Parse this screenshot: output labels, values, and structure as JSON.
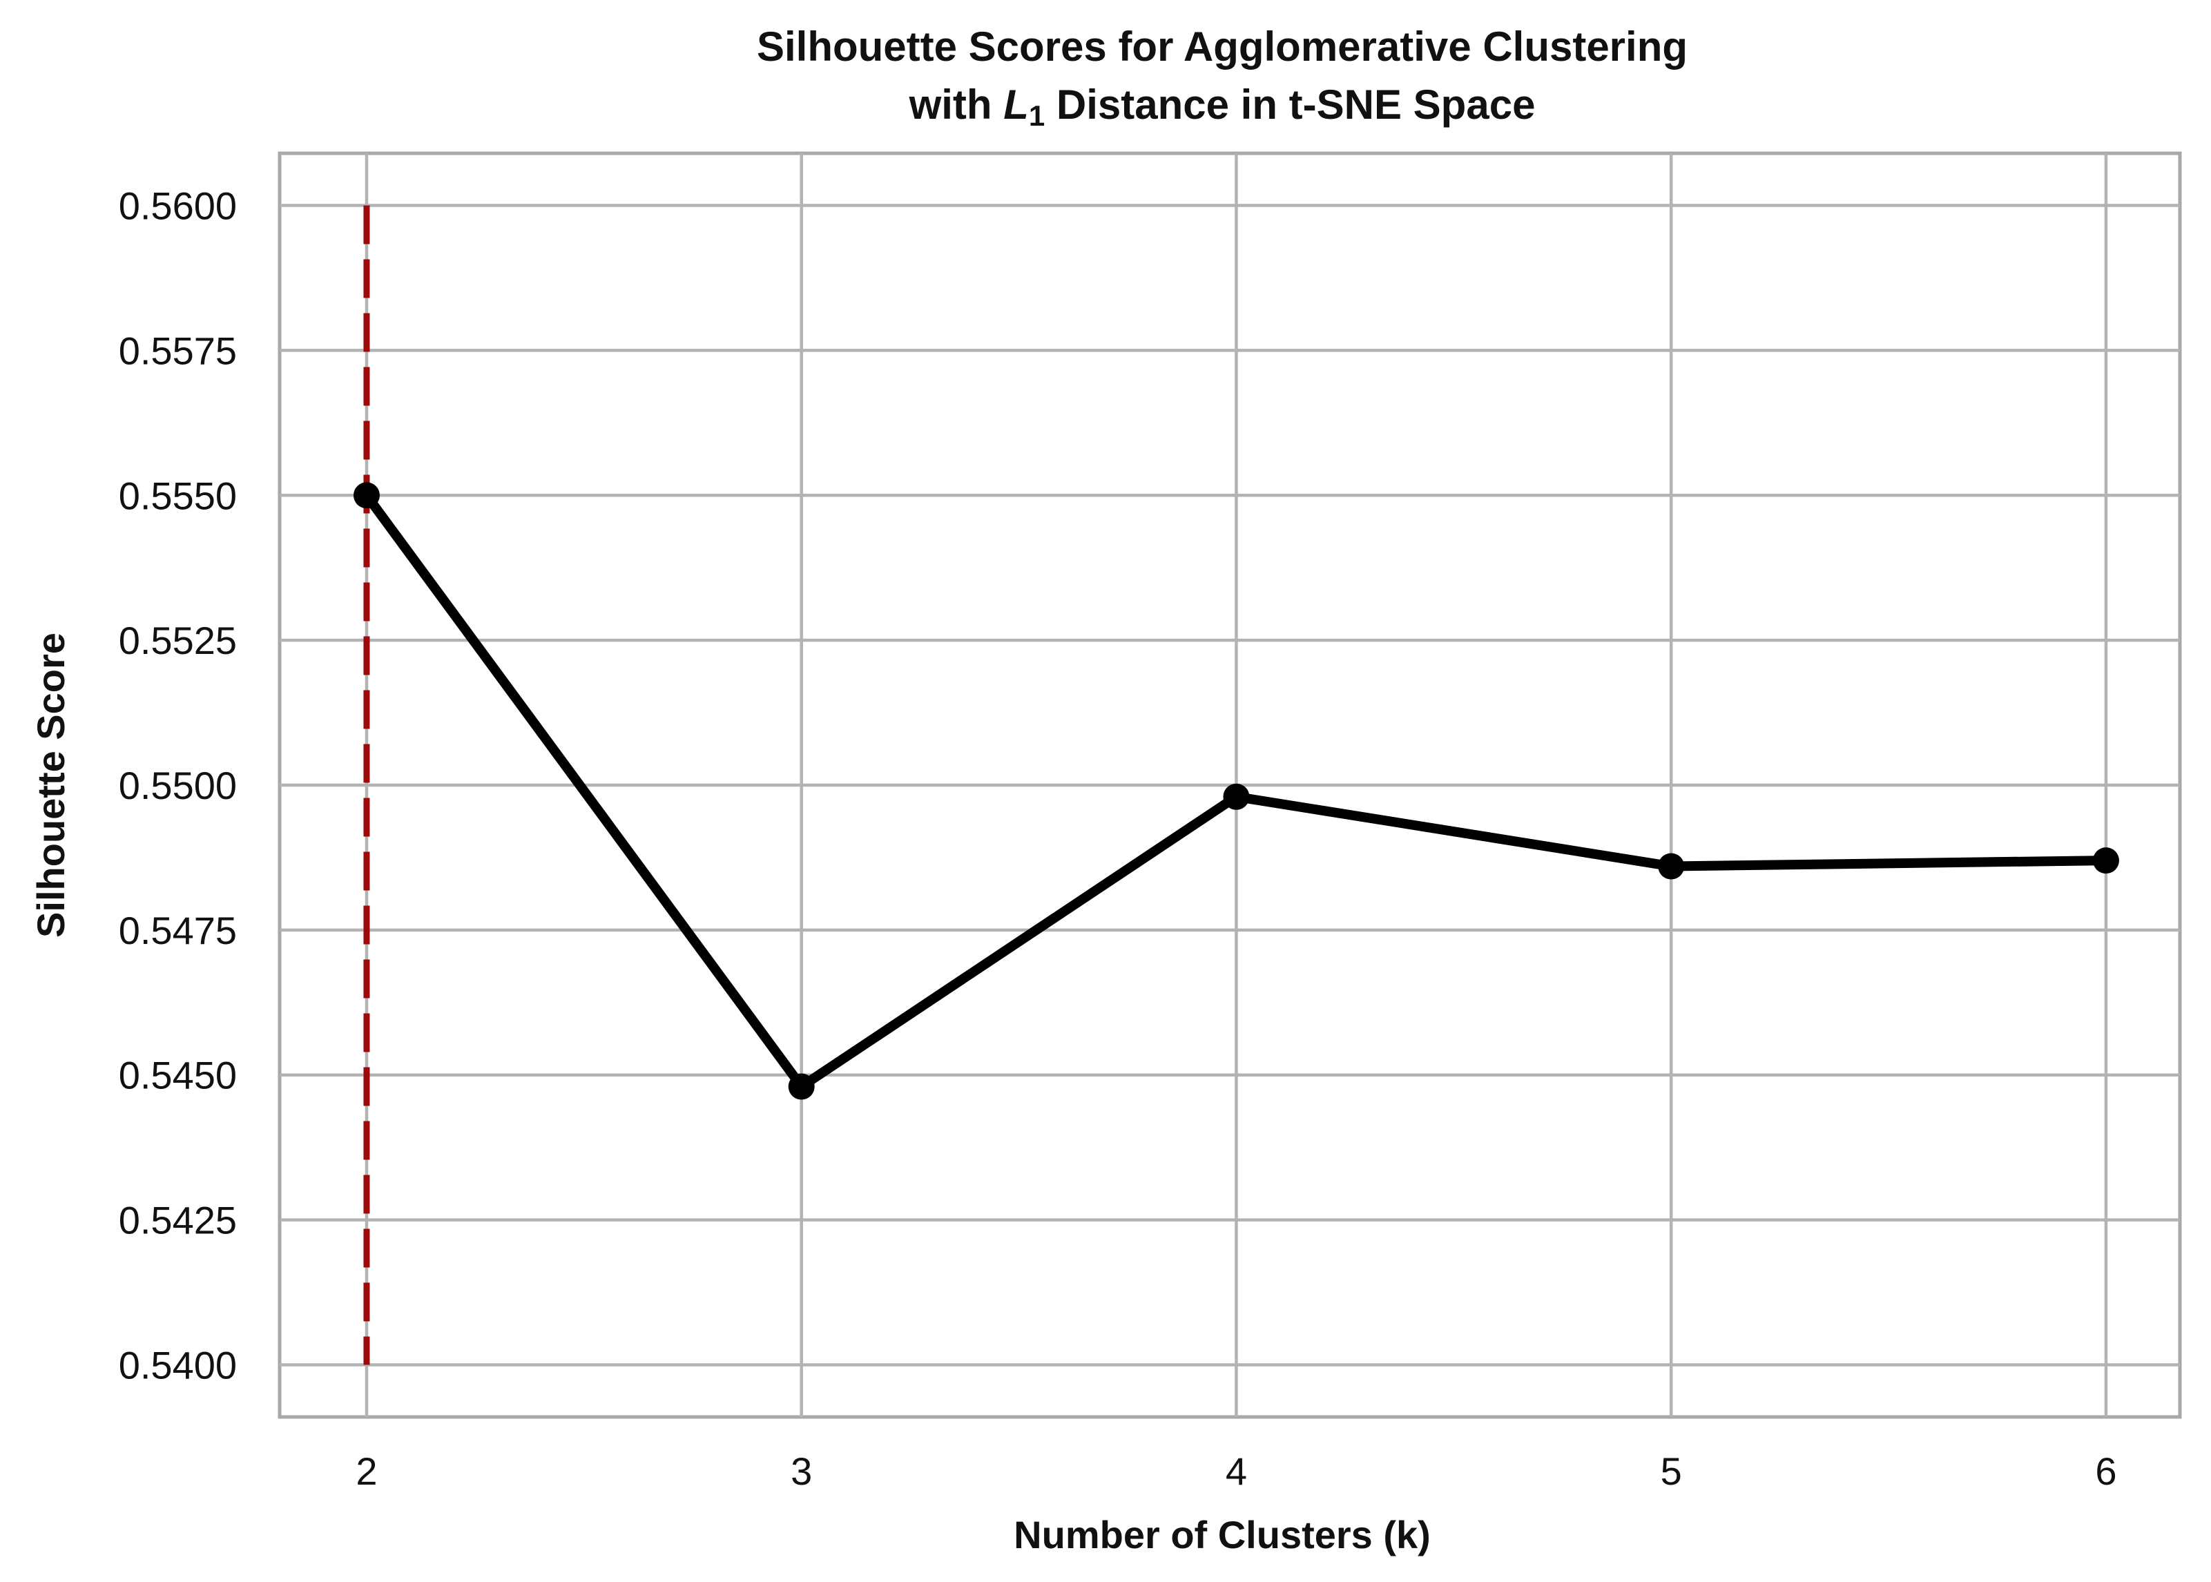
{
  "chart_data": {
    "type": "line",
    "title_lines": [
      "Silhouette Scores for Agglomerative Clustering",
      "with ",
      "L",
      "1",
      " Distance in t-SNE Space"
    ],
    "title": "Silhouette Scores for Agglomerative Clustering with L1 Distance in t-SNE Space",
    "xlabel": "Number of Clusters (k)",
    "ylabel": "Silhouette Score",
    "x": [
      2,
      3,
      4,
      5,
      6
    ],
    "x_tick_labels": [
      "2",
      "3",
      "4",
      "5",
      "6"
    ],
    "xlim": [
      1.8,
      6.17
    ],
    "y_ticks": [
      0.54,
      0.5425,
      0.545,
      0.5475,
      0.55,
      0.5525,
      0.555,
      0.5575,
      0.56
    ],
    "y_tick_labels": [
      "0.5400",
      "0.5425",
      "0.5450",
      "0.5475",
      "0.5500",
      "0.5525",
      "0.5550",
      "0.5575",
      "0.5600"
    ],
    "ylim": [
      0.5391,
      0.5609
    ],
    "grid": true,
    "series": [
      {
        "values": [
          0.555,
          0.5448,
          0.5498,
          0.5486,
          0.5487
        ],
        "color": "#000000",
        "marker": "circle"
      }
    ],
    "reference_lines": [
      {
        "orientation": "vertical",
        "x": 2,
        "y_range": [
          0.54,
          0.56
        ],
        "style": "dashed",
        "color": "#9c0a0a"
      }
    ]
  }
}
